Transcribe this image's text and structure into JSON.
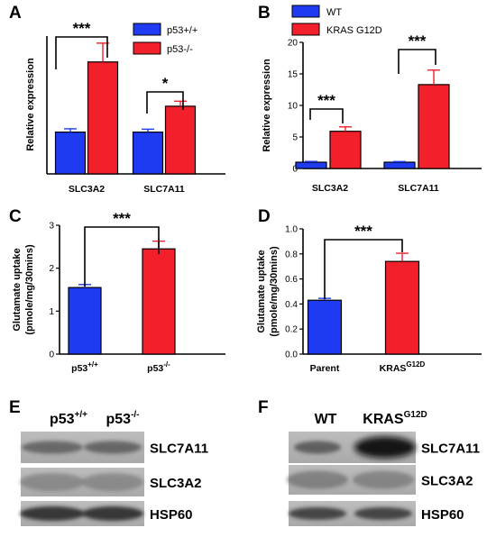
{
  "panels": {
    "A": "A",
    "B": "B",
    "C": "C",
    "D": "D",
    "E": "E",
    "F": "F"
  },
  "colors": {
    "blue": "#1f3bf2",
    "red": "#f2202a"
  },
  "chart_data": [
    {
      "id": "A",
      "type": "bar",
      "ylabel": "Relative expression",
      "categories": [
        "SLC3A2",
        "SLC7A11"
      ],
      "series": [
        {
          "name": "p53+/+",
          "color": "#1f3bf2",
          "values": [
            1.0,
            1.0
          ],
          "errors": [
            0.08,
            0.07
          ]
        },
        {
          "name": "p53-/-",
          "color": "#f2202a",
          "values": [
            2.68,
            1.62
          ],
          "errors": [
            0.45,
            0.12
          ]
        }
      ],
      "significance": [
        "***",
        "*"
      ],
      "legend": "top-right"
    },
    {
      "id": "B",
      "type": "bar",
      "ylabel": "Relative expression",
      "categories": [
        "SLC3A2",
        "SLC7A11"
      ],
      "yticks": [
        "0",
        "5",
        "10",
        "15",
        "20"
      ],
      "ylim": [
        0,
        20
      ],
      "series": [
        {
          "name": "WT",
          "color": "#1f3bf2",
          "values": [
            1.0,
            1.0
          ],
          "errors": [
            0.12,
            0.1
          ]
        },
        {
          "name": "KRAS G12D",
          "color": "#f2202a",
          "values": [
            5.9,
            13.3
          ],
          "errors": [
            0.7,
            2.3
          ]
        }
      ],
      "significance": [
        "***",
        "***"
      ],
      "legend": "top"
    },
    {
      "id": "C",
      "type": "bar",
      "ylabel_lines": [
        "Glutamate uptake",
        "(pmole/mg/30mins)"
      ],
      "yticks": [
        "0",
        "1",
        "2",
        "3"
      ],
      "ylim": [
        0,
        3
      ],
      "categories": [
        "p53+/+",
        "p53-/-"
      ],
      "category_base": [
        "p53",
        "p53"
      ],
      "category_sup": [
        "+/+",
        "-/-"
      ],
      "values": [
        1.55,
        2.45
      ],
      "errors": [
        0.07,
        0.18
      ],
      "colors": [
        "#1f3bf2",
        "#f2202a"
      ],
      "significance": [
        "***"
      ]
    },
    {
      "id": "D",
      "type": "bar",
      "ylabel_lines": [
        "Glutamate uptake",
        "(pmole/mg/30mins)"
      ],
      "yticks": [
        "0.0",
        "0.2",
        "0.4",
        "0.6",
        "0.8",
        "1.0"
      ],
      "ylim": [
        0,
        1.0
      ],
      "categories": [
        "Parent",
        "KRAS G12D"
      ],
      "category_base": [
        "Parent",
        "KRAS"
      ],
      "category_sup": [
        "",
        "G12D"
      ],
      "values": [
        0.43,
        0.74
      ],
      "errors": [
        0.015,
        0.065
      ],
      "colors": [
        "#1f3bf2",
        "#f2202a"
      ],
      "significance": [
        "***"
      ]
    }
  ],
  "blots": [
    {
      "id": "E",
      "lane_labels": [
        {
          "base": "p53",
          "sup": "+/+"
        },
        {
          "base": "p53",
          "sup": "-/-"
        }
      ],
      "bands": [
        "SLC7A11",
        "SLC3A2",
        "HSP60"
      ]
    },
    {
      "id": "F",
      "lane_labels": [
        {
          "base": "WT",
          "sup": ""
        },
        {
          "base": "KRAS",
          "sup": "G12D"
        }
      ],
      "bands": [
        "SLC7A11",
        "SLC3A2",
        "HSP60"
      ]
    }
  ]
}
